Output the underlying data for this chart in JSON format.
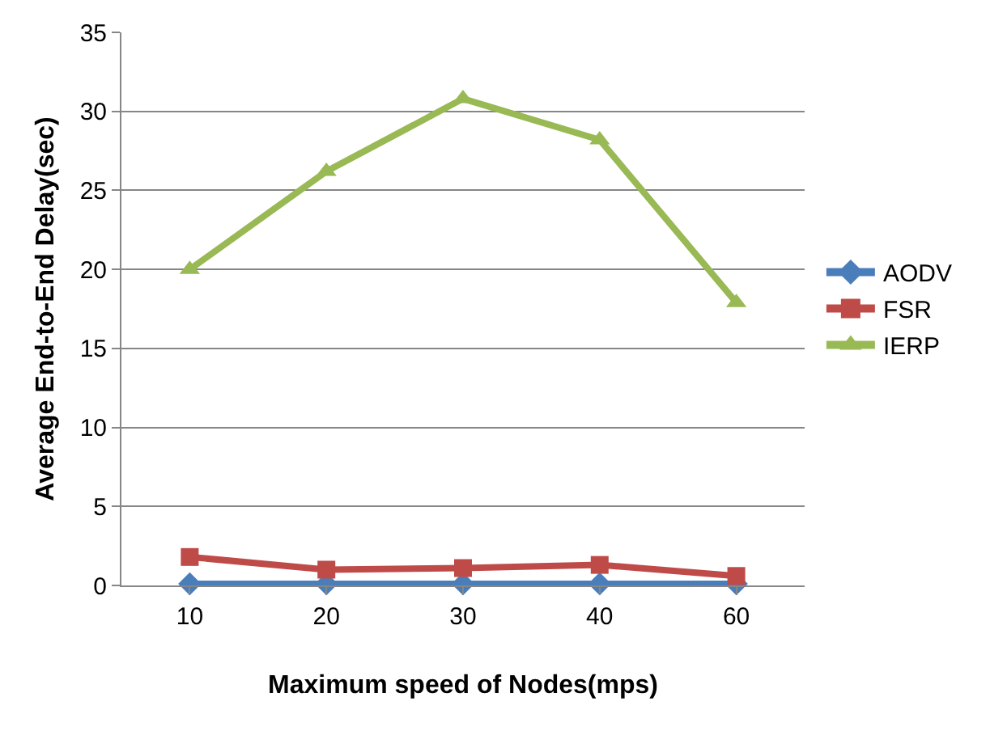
{
  "chart_data": {
    "type": "line",
    "xlabel": "Maximum speed of Nodes(mps)",
    "ylabel": "Average End-to-End Delay(sec)",
    "categories": [
      "10",
      "20",
      "30",
      "40",
      "60"
    ],
    "series": [
      {
        "name": "AODV",
        "color": "#4a7ebb",
        "values": [
          0.1,
          0.1,
          0.1,
          0.1,
          0.1
        ],
        "marker": "diamond"
      },
      {
        "name": "FSR",
        "color": "#be4b48",
        "values": [
          1.8,
          1.0,
          1.1,
          1.3,
          0.6
        ],
        "marker": "square"
      },
      {
        "name": "IERP",
        "color": "#98b954",
        "values": [
          20,
          26.2,
          30.8,
          28.2,
          17.9
        ],
        "marker": "triangle"
      }
    ],
    "ylim": [
      0,
      35
    ],
    "yticks": [
      0,
      5,
      10,
      15,
      20,
      25,
      30,
      35
    ],
    "grid": "y",
    "legend": "right",
    "line_style": "solid"
  }
}
